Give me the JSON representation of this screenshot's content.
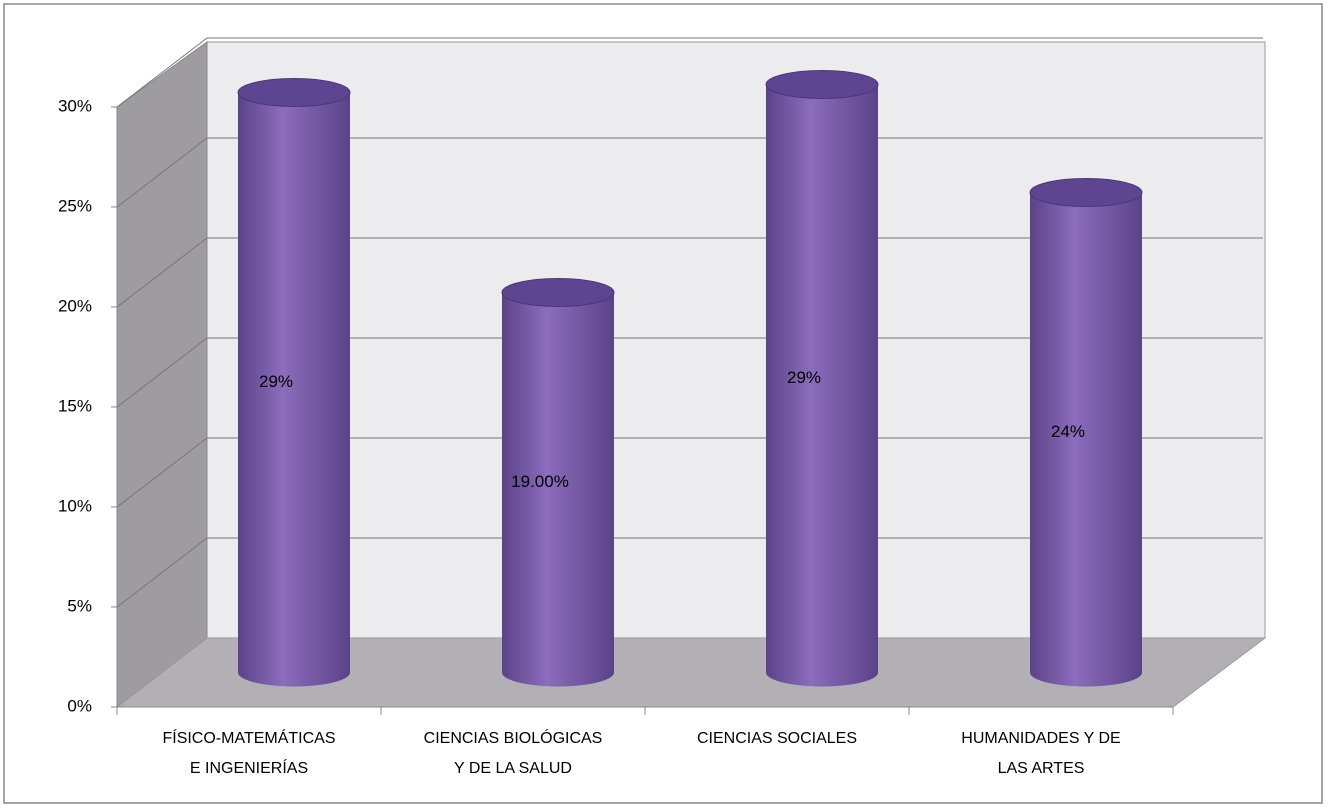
{
  "chart_data": {
    "type": "bar3d",
    "categories": [
      "FÍSICO-MATEMÁTICAS\nE INGENIERÍAS",
      "CIENCIAS BIOLÓGICAS\nY DE LA SALUD",
      "CIENCIAS SOCIALES",
      "HUMANIDADES Y DE\nLAS ARTES"
    ],
    "values": [
      29,
      19,
      29.4,
      24
    ],
    "value_labels": [
      "29%",
      "19.00%",
      "29%",
      "24%"
    ],
    "color": "#7c5fae",
    "ylim": [
      0,
      30
    ],
    "yticks": [
      {
        "value": 0,
        "label": "0%"
      },
      {
        "value": 5,
        "label": "5%"
      },
      {
        "value": 10,
        "label": "10%"
      },
      {
        "value": 15,
        "label": "15%"
      },
      {
        "value": 20,
        "label": "20%"
      },
      {
        "value": 25,
        "label": "25%"
      },
      {
        "value": 30,
        "label": "30%"
      }
    ],
    "grid": true
  }
}
